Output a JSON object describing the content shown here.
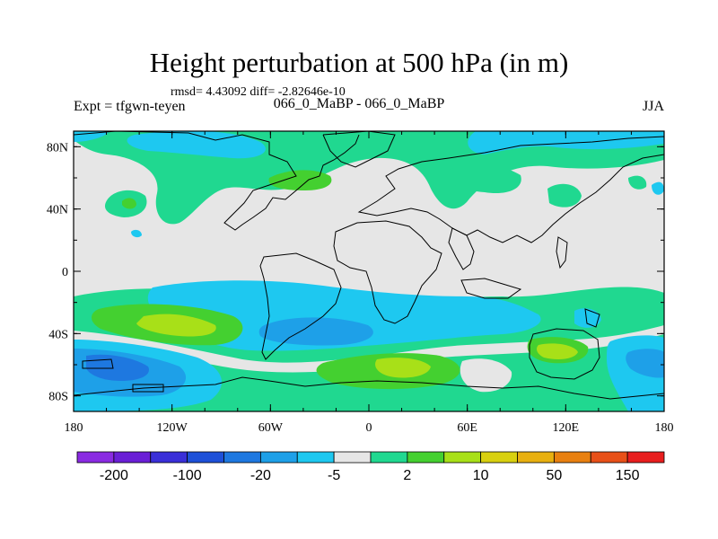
{
  "chart_data": {
    "type": "heatmap",
    "title": "Height perturbation at 500 hPa (in m)",
    "stats_text": "rmsd= 4.43092 diff= -2.82646e-10",
    "left_label": "Expt = tfgwn-teyen",
    "center_label": "066_0_MaBP - 066_0_MaBP",
    "right_label": "JJA",
    "x_ticks": [
      "180",
      "120W",
      "60W",
      "0",
      "60E",
      "120E",
      "180"
    ],
    "y_ticks": [
      "80N",
      "40N",
      "0",
      "40S",
      "80S"
    ],
    "colorbar": {
      "colors": [
        "#8a2be2",
        "#6a1fd6",
        "#3a2fd8",
        "#1e50d8",
        "#1e78e0",
        "#1ea0e8",
        "#1ec8f0",
        "#e6e6e6",
        "#20d890",
        "#44d030",
        "#a8e018",
        "#d8d010",
        "#e8b010",
        "#e88010",
        "#e85018",
        "#e81e1e"
      ],
      "labels": [
        "-200",
        "-100",
        "-20",
        "-5",
        "2",
        "10",
        "50",
        "150"
      ]
    }
  }
}
